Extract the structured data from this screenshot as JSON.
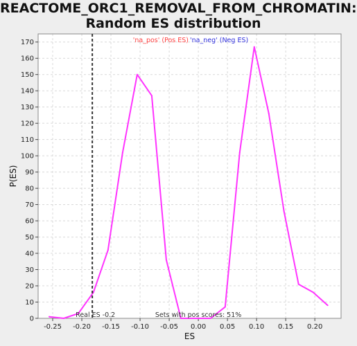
{
  "chart_data": {
    "type": "line",
    "title_line1": "REACTOME_ORC1_REMOVAL_FROM_CHROMATIN:",
    "title_line2": "Random ES distribution",
    "xlabel": "ES",
    "ylabel": "P(ES)",
    "xlim": [
      -0.275,
      0.245
    ],
    "ylim": [
      0,
      175
    ],
    "grid": true,
    "legend": {
      "pos_label": "'na_pos' (Pos ES)",
      "neg_label": "'na_neg' (Neg ES)",
      "pos_color": "#ff4444",
      "neg_color": "#3333dd",
      "placement": "top-center"
    },
    "x_ticks": [
      -0.25,
      -0.2,
      -0.15,
      -0.1,
      -0.05,
      0.0,
      0.05,
      0.1,
      0.15,
      0.2
    ],
    "x_tick_labels": [
      "-0.25",
      "-0.20",
      "-0.15",
      "-0.10",
      "-0.05",
      "0.00",
      "0.05",
      "0.10",
      "0.15",
      "0.20"
    ],
    "y_ticks": [
      0,
      10,
      20,
      30,
      40,
      50,
      60,
      70,
      80,
      90,
      100,
      110,
      120,
      130,
      140,
      150,
      160,
      170
    ],
    "series": [
      {
        "color": "#ff33ff",
        "x": [
          -0.256,
          -0.231,
          -0.206,
          -0.18,
          -0.155,
          -0.13,
          -0.105,
          -0.08,
          -0.055,
          -0.03,
          -0.004,
          0.021,
          0.046,
          0.071,
          0.096,
          0.121,
          0.147,
          0.172,
          0.197,
          0.222
        ],
        "y": [
          1,
          0,
          3,
          16,
          42,
          102,
          150,
          137,
          36,
          0,
          0,
          0,
          7,
          102,
          167,
          126,
          66,
          21,
          16,
          8
        ]
      }
    ],
    "real_es": {
      "value": -0.182,
      "label": "Real ES -0.2"
    },
    "pos_scores_text": "Sets with pos scores: 51%"
  }
}
